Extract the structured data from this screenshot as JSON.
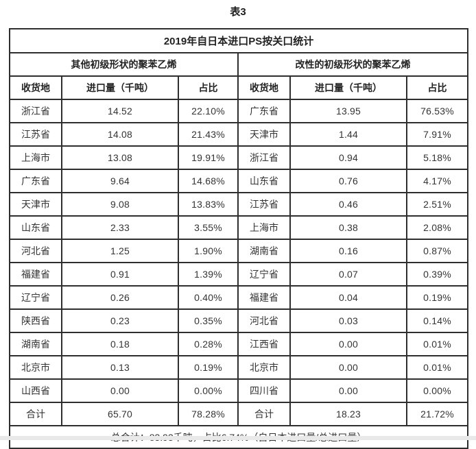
{
  "page": {
    "title": "表3"
  },
  "table": {
    "title": "2019年自日本进口PS按关口统计",
    "sections": [
      {
        "label": "其他初级形状的聚苯乙烯"
      },
      {
        "label": "改性的初级形状的聚苯乙烯"
      }
    ],
    "columns": [
      "收货地",
      "进口量（千吨）",
      "占比"
    ],
    "left_rows": [
      [
        "浙江省",
        "14.52",
        "22.10%"
      ],
      [
        "江苏省",
        "14.08",
        "21.43%"
      ],
      [
        "上海市",
        "13.08",
        "19.91%"
      ],
      [
        "广东省",
        "9.64",
        "14.68%"
      ],
      [
        "天津市",
        "9.08",
        "13.83%"
      ],
      [
        "山东省",
        "2.33",
        "3.55%"
      ],
      [
        "河北省",
        "1.25",
        "1.90%"
      ],
      [
        "福建省",
        "0.91",
        "1.39%"
      ],
      [
        "辽宁省",
        "0.26",
        "0.40%"
      ],
      [
        "陕西省",
        "0.23",
        "0.35%"
      ],
      [
        "湖南省",
        "0.18",
        "0.28%"
      ],
      [
        "北京市",
        "0.13",
        "0.19%"
      ],
      [
        "山西省",
        "0.00",
        "0.00%"
      ],
      [
        "合计",
        "65.70",
        "78.28%"
      ]
    ],
    "right_rows": [
      [
        "广东省",
        "13.95",
        "76.53%"
      ],
      [
        "天津市",
        "1.44",
        "7.91%"
      ],
      [
        "浙江省",
        "0.94",
        "5.18%"
      ],
      [
        "山东省",
        "0.76",
        "4.17%"
      ],
      [
        "江苏省",
        "0.46",
        "2.51%"
      ],
      [
        "上海市",
        "0.38",
        "2.08%"
      ],
      [
        "湖南省",
        "0.16",
        "0.87%"
      ],
      [
        "辽宁省",
        "0.07",
        "0.39%"
      ],
      [
        "福建省",
        "0.04",
        "0.19%"
      ],
      [
        "河北省",
        "0.03",
        "0.14%"
      ],
      [
        "江西省",
        "0.00",
        "0.01%"
      ],
      [
        "北京市",
        "0.00",
        "0.01%"
      ],
      [
        "四川省",
        "0.00",
        "0.00%"
      ]
    ],
    "right_total": [
      "合计",
      "18.23",
      "21.72%"
    ],
    "grand_total": "总合计：83.93千吨，占比6.74%（自日本进口量/总进口量）"
  },
  "colors": {
    "border": "#2e2e2e",
    "text": "#333333",
    "bottom_strip": "#e9e9e9",
    "background": "#ffffff"
  }
}
